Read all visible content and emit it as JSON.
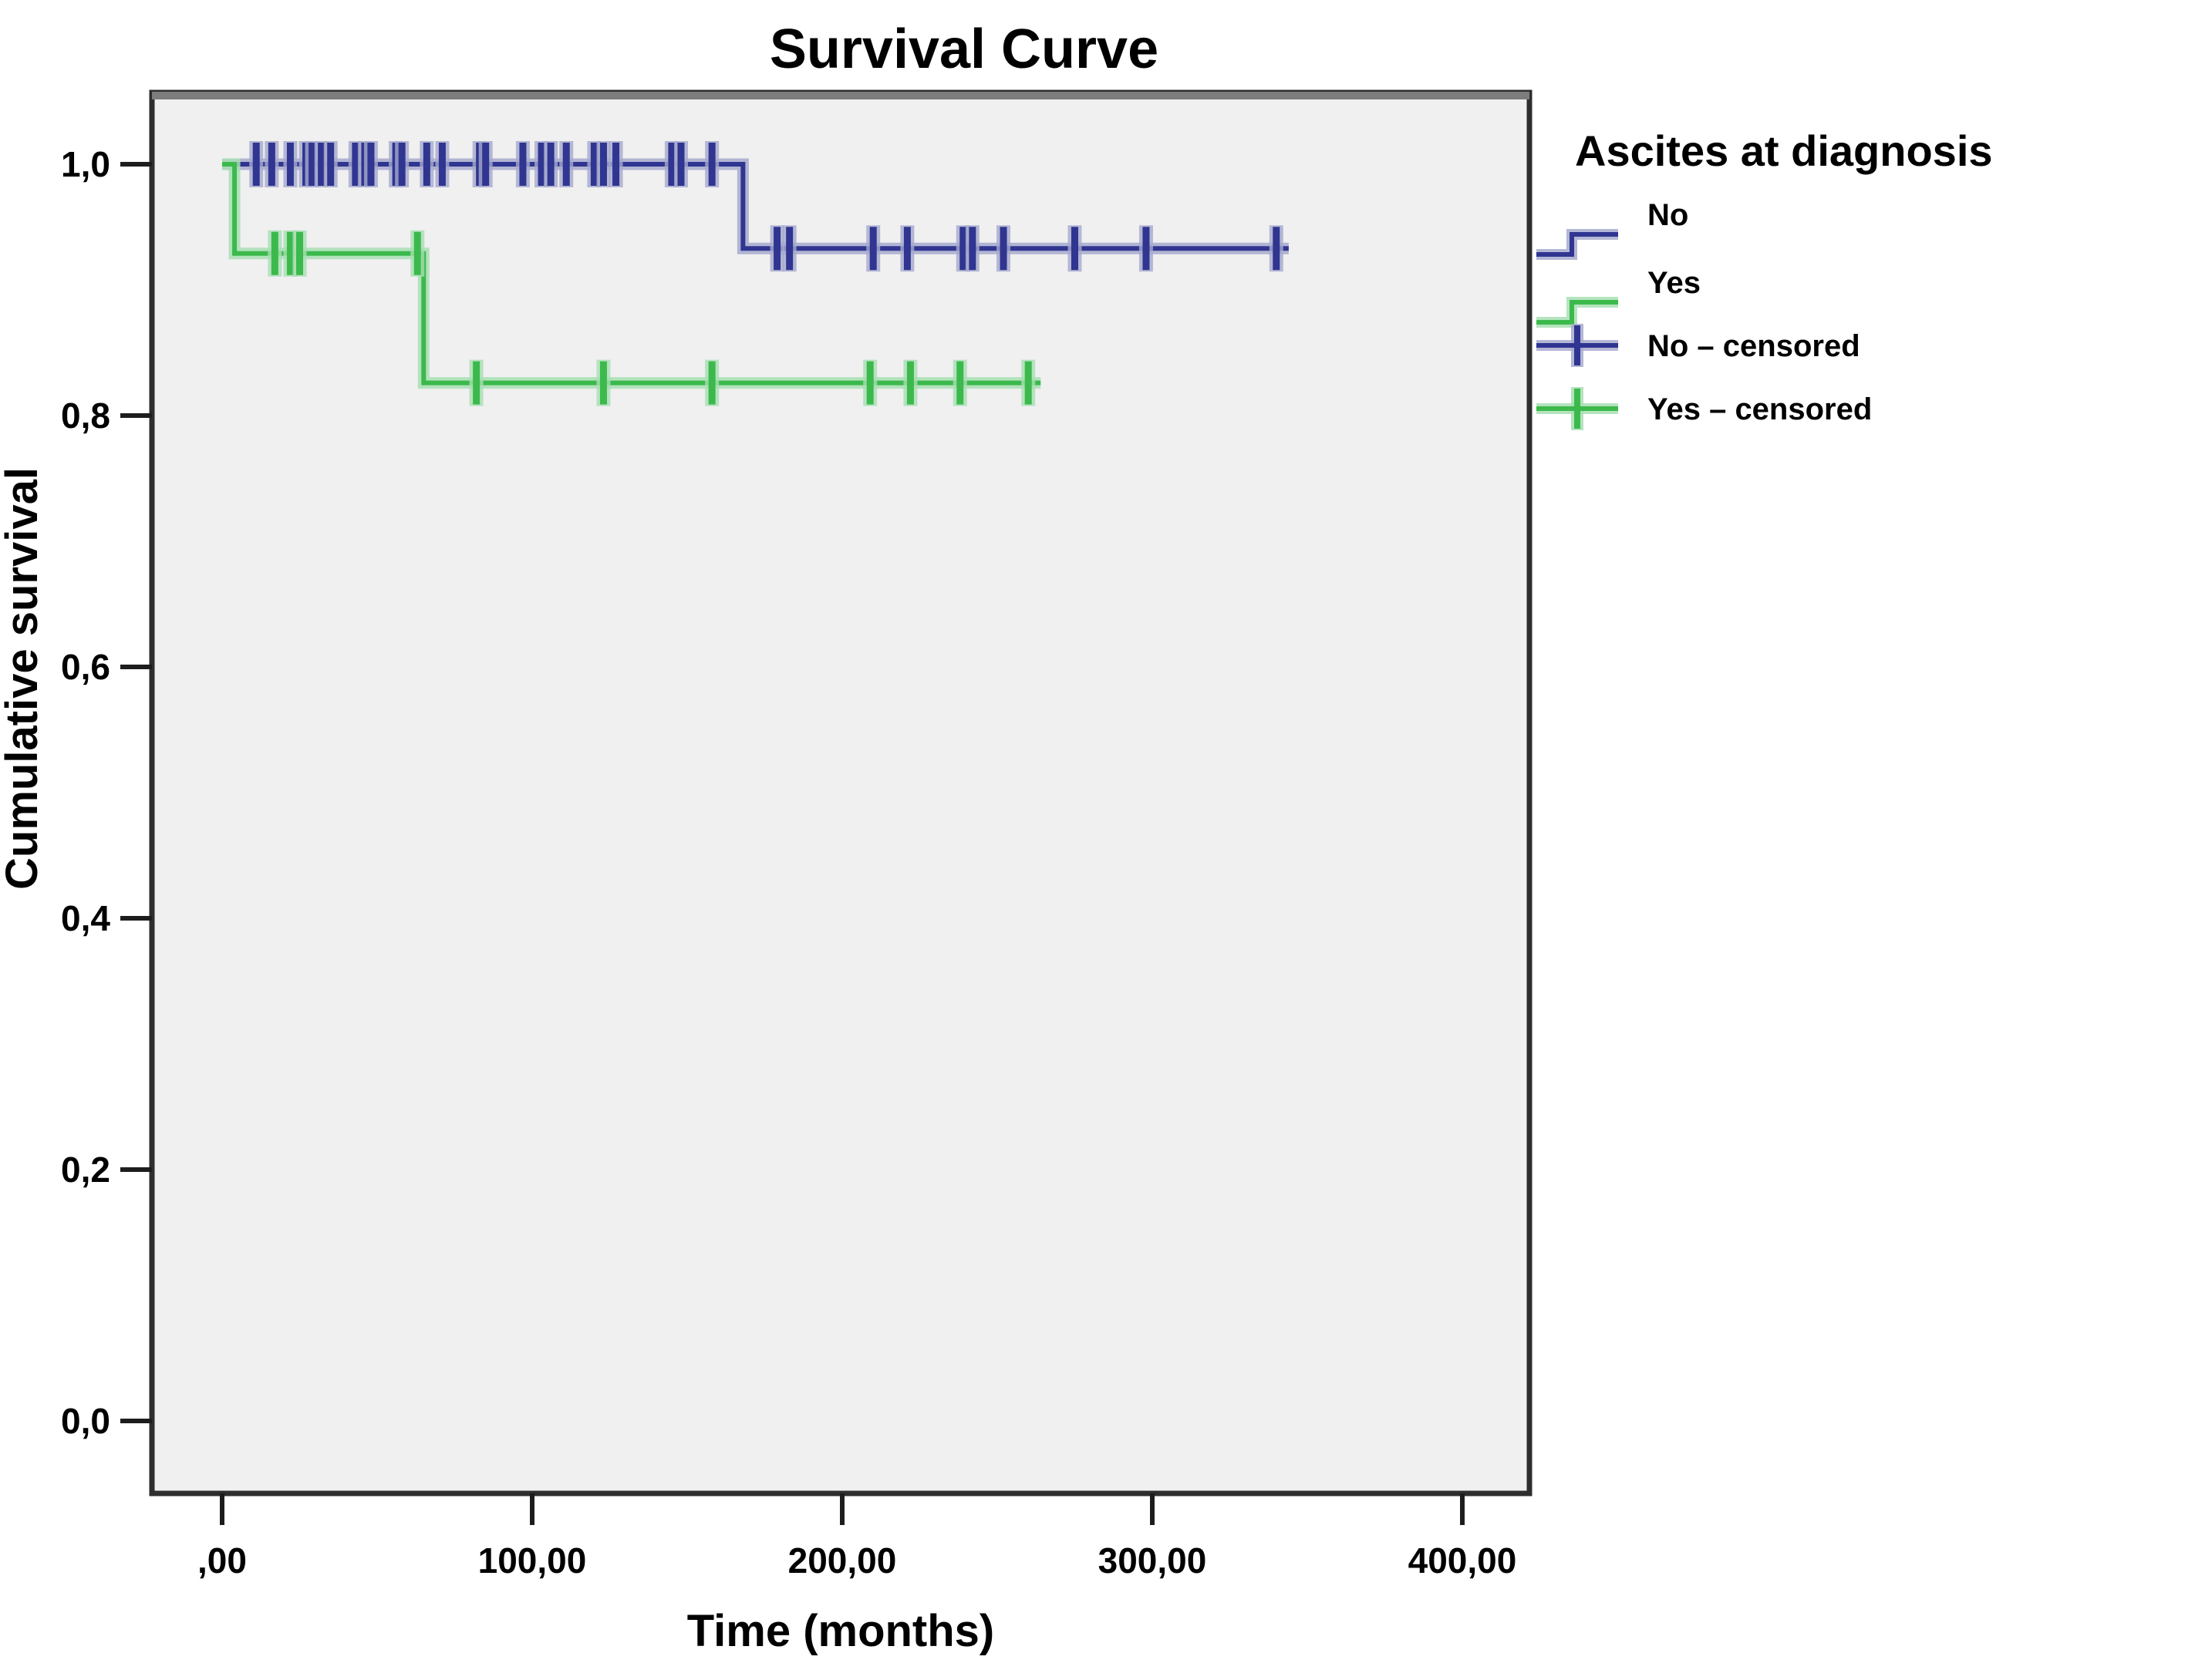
{
  "title": "Survival Curve",
  "x_axis": {
    "label": "Time (months)",
    "tick_labels": [
      ",00",
      "100,00",
      "200,00",
      "300,00",
      "400,00"
    ],
    "tick_values": [
      0,
      100,
      200,
      300,
      400
    ]
  },
  "y_axis": {
    "label": "Cumulative survival",
    "tick_labels": [
      "1,0",
      "0,8",
      "0,6",
      "0,4",
      "0,2",
      "0,0"
    ],
    "tick_values": [
      1.0,
      0.8,
      0.6,
      0.4,
      0.2,
      0.0
    ]
  },
  "legend": {
    "title": "Ascites at diagnosis",
    "items": [
      {
        "label": "No",
        "type": "step",
        "color": "#2F3590",
        "halo": "#A6AACE"
      },
      {
        "label": "Yes",
        "type": "step",
        "color": "#3CB94C",
        "halo": "#A8DFB3"
      },
      {
        "label": "No – censored",
        "type": "plus",
        "color": "#2F3590",
        "halo": "#A6AACE"
      },
      {
        "label": "Yes – censored",
        "type": "plus",
        "color": "#3CB94C",
        "halo": "#A8DFB3"
      }
    ]
  },
  "colors": {
    "no_series": "#2F3590",
    "no_halo": "#A6AACE",
    "yes_series": "#3CB94C",
    "yes_halo": "#A8DFB3",
    "plot_background": "#F0F0F1",
    "frame": "#2E2E2E",
    "frame_top": "#7D7D7D",
    "page_background": "#FFFFFF"
  },
  "chart_data": {
    "type": "line",
    "subtype": "kaplan-meier-step",
    "title": "Survival Curve",
    "xlabel": "Time (months)",
    "ylabel": "Cumulative survival",
    "xlim": [
      -22,
      422
    ],
    "ylim": [
      -0.057,
      1.057
    ],
    "x_ticks": [
      0,
      100,
      200,
      300,
      400
    ],
    "y_ticks": [
      0.0,
      0.2,
      0.4,
      0.6,
      0.8,
      1.0
    ],
    "grid": false,
    "legend_position": "top-right-outside",
    "series": [
      {
        "name": "No",
        "color": "#2F3590",
        "halo": "#A6AACE",
        "steps": [
          [
            0,
            1.0
          ],
          [
            168,
            1.0
          ],
          [
            168,
            0.933
          ],
          [
            344,
            0.933
          ]
        ],
        "censored": [
          [
            11,
            1.0
          ],
          [
            16,
            1.0
          ],
          [
            22,
            1.0
          ],
          [
            27,
            1.0
          ],
          [
            29,
            1.0
          ],
          [
            32,
            1.0
          ],
          [
            35,
            1.0
          ],
          [
            43,
            1.0
          ],
          [
            46,
            1.0
          ],
          [
            48,
            1.0
          ],
          [
            56,
            1.0
          ],
          [
            58,
            1.0
          ],
          [
            66,
            1.0
          ],
          [
            71,
            1.0
          ],
          [
            83,
            1.0
          ],
          [
            85,
            1.0
          ],
          [
            97,
            1.0
          ],
          [
            103,
            1.0
          ],
          [
            106,
            1.0
          ],
          [
            111,
            1.0
          ],
          [
            120,
            1.0
          ],
          [
            123,
            1.0
          ],
          [
            127,
            1.0
          ],
          [
            145,
            1.0
          ],
          [
            148,
            1.0
          ],
          [
            158,
            1.0
          ],
          [
            179,
            0.933
          ],
          [
            183,
            0.933
          ],
          [
            210,
            0.933
          ],
          [
            221,
            0.933
          ],
          [
            239,
            0.933
          ],
          [
            242,
            0.933
          ],
          [
            252,
            0.933
          ],
          [
            275,
            0.933
          ],
          [
            298,
            0.933
          ],
          [
            340,
            0.933
          ]
        ]
      },
      {
        "name": "Yes",
        "color": "#3CB94C",
        "halo": "#A8DFB3",
        "steps": [
          [
            0,
            1.0
          ],
          [
            4,
            1.0
          ],
          [
            4,
            0.929
          ],
          [
            65,
            0.929
          ],
          [
            65,
            0.826
          ],
          [
            264,
            0.826
          ]
        ],
        "censored": [
          [
            17,
            0.929
          ],
          [
            22,
            0.929
          ],
          [
            25,
            0.929
          ],
          [
            63,
            0.929
          ],
          [
            82,
            0.826
          ],
          [
            123,
            0.826
          ],
          [
            158,
            0.826
          ],
          [
            209,
            0.826
          ],
          [
            222,
            0.826
          ],
          [
            238,
            0.826
          ],
          [
            260,
            0.826
          ]
        ]
      }
    ]
  }
}
